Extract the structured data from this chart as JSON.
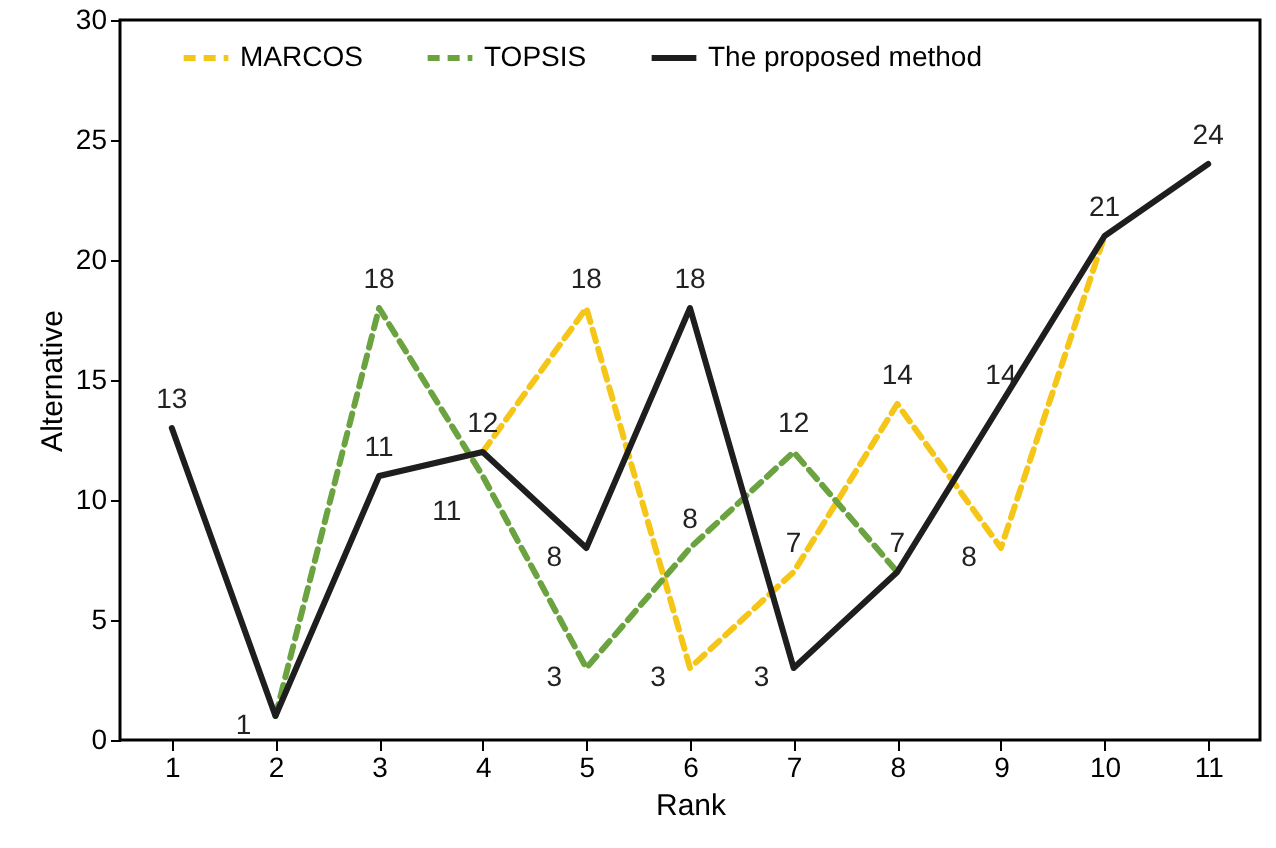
{
  "chart_data": {
    "type": "line",
    "xlabel": "Rank",
    "ylabel": "Alternative",
    "categories": [
      "1",
      "2",
      "3",
      "4",
      "5",
      "6",
      "7",
      "8",
      "9",
      "10",
      "11"
    ],
    "ylim": [
      0,
      30
    ],
    "yticks": [
      0,
      5,
      10,
      15,
      20,
      25,
      30
    ],
    "grid": false,
    "legend": "top",
    "marker": "none",
    "series": [
      {
        "name": "MARCOS",
        "color": "#f5c518",
        "line_style": "dashed",
        "values": [
          null,
          null,
          null,
          12,
          18,
          3,
          7,
          14,
          8,
          21,
          null
        ],
        "value_labels": [
          null,
          null,
          null,
          null,
          "18",
          "3",
          "7",
          "14",
          "8",
          null,
          null
        ]
      },
      {
        "name": "TOPSIS",
        "color": "#6aa33f",
        "line_style": "dashed",
        "values": [
          null,
          1,
          18,
          11,
          3,
          8,
          12,
          7,
          null,
          null,
          null
        ],
        "value_labels": [
          null,
          null,
          "18",
          "11",
          "3",
          "8",
          "12",
          null,
          null,
          null,
          null
        ]
      },
      {
        "name": "The proposed method",
        "color": "#1e1e1e",
        "line_style": "solid",
        "values": [
          13,
          1,
          11,
          12,
          8,
          18,
          3,
          7,
          14,
          21,
          24
        ],
        "value_labels": [
          "13",
          "1",
          "11",
          "12",
          "8",
          "18",
          "3",
          "7",
          "14",
          "21",
          "24"
        ]
      }
    ]
  }
}
